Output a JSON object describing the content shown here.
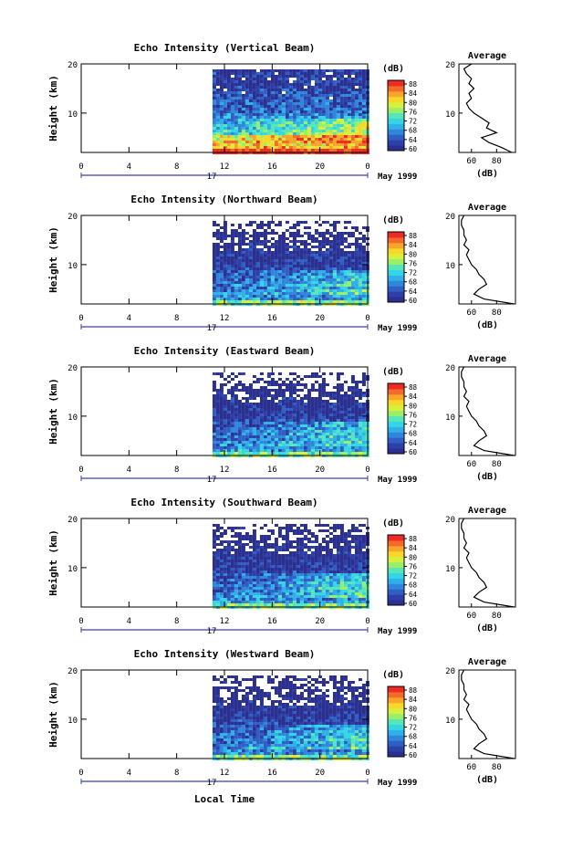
{
  "figure": {
    "xlabel": "Local Time",
    "date_label": "May 1999",
    "day_label": "17",
    "colorbar_unit": "(dB)",
    "profile_title": "Average",
    "profile_xlabel": "(dB)",
    "ylabel": "Height (km)"
  },
  "colormap": [
    "#2b2f8f",
    "#2e3fa8",
    "#2f5fc4",
    "#2f86db",
    "#2fb0e8",
    "#34d6e6",
    "#57e6b8",
    "#9aef6a",
    "#d6f03c",
    "#f7d82a",
    "#f8a52a",
    "#f46a2a",
    "#ee2a25"
  ],
  "chart_data": [
    {
      "type": "heatmap",
      "title": "Echo Intensity (Vertical Beam)",
      "x_ticks": [
        "0",
        "4",
        "8",
        "12",
        "16",
        "20",
        "0"
      ],
      "y_ticks": [
        "20",
        "10"
      ],
      "xlim": [
        0,
        24
      ],
      "ylim": [
        2,
        20
      ],
      "data_start_hour": 11,
      "colorbar_ticks": [
        "88",
        "84",
        "80",
        "76",
        "72",
        "68",
        "64",
        "60"
      ],
      "clim": [
        60,
        90
      ],
      "pattern": {
        "low": 84,
        "mid": 72,
        "upper": 66,
        "top": 62,
        "sparse": 0.02
      },
      "profile": {
        "xlim": [
          50,
          95
        ],
        "x_ticks": [
          "60",
          "80"
        ],
        "y_ticks": [
          "20",
          "10"
        ],
        "heights": [
          2,
          3,
          4,
          5,
          6,
          7,
          8,
          9,
          10,
          11,
          12,
          13,
          14,
          15,
          16,
          17,
          18,
          19,
          20
        ],
        "values": [
          92,
          84,
          74,
          68,
          80,
          72,
          74,
          68,
          62,
          58,
          56,
          60,
          58,
          62,
          58,
          60,
          56,
          54,
          60
        ]
      }
    },
    {
      "type": "heatmap",
      "title": "Echo Intensity (Northward Beam)",
      "x_ticks": [
        "0",
        "4",
        "8",
        "12",
        "16",
        "20",
        "0"
      ],
      "y_ticks": [
        "20",
        "10"
      ],
      "xlim": [
        0,
        24
      ],
      "ylim": [
        2,
        20
      ],
      "data_start_hour": 11,
      "colorbar_ticks": [
        "88",
        "84",
        "80",
        "76",
        "72",
        "68",
        "64",
        "60"
      ],
      "clim": [
        60,
        90
      ],
      "pattern": {
        "low": 70,
        "mid": 66,
        "upper": 62,
        "top": 58,
        "sparse": 0.25
      },
      "profile": {
        "xlim": [
          50,
          95
        ],
        "x_ticks": [
          "60",
          "80"
        ],
        "y_ticks": [
          "20",
          "10"
        ],
        "heights": [
          2,
          3,
          4,
          5,
          6,
          7,
          8,
          9,
          10,
          11,
          12,
          13,
          14,
          15,
          16,
          17,
          18,
          19,
          20
        ],
        "values": [
          94,
          70,
          62,
          66,
          72,
          70,
          66,
          64,
          60,
          58,
          56,
          58,
          54,
          56,
          54,
          54,
          52,
          52,
          54
        ]
      }
    },
    {
      "type": "heatmap",
      "title": "Echo Intensity (Eastward Beam)",
      "x_ticks": [
        "0",
        "4",
        "8",
        "12",
        "16",
        "20",
        "0"
      ],
      "y_ticks": [
        "20",
        "10"
      ],
      "xlim": [
        0,
        24
      ],
      "ylim": [
        2,
        20
      ],
      "data_start_hour": 11,
      "colorbar_ticks": [
        "88",
        "84",
        "80",
        "76",
        "72",
        "68",
        "64",
        "60"
      ],
      "clim": [
        60,
        90
      ],
      "pattern": {
        "low": 70,
        "mid": 66,
        "upper": 62,
        "top": 58,
        "sparse": 0.3
      },
      "profile": {
        "xlim": [
          50,
          95
        ],
        "x_ticks": [
          "60",
          "80"
        ],
        "y_ticks": [
          "20",
          "10"
        ],
        "heights": [
          2,
          3,
          4,
          5,
          6,
          7,
          8,
          9,
          10,
          11,
          12,
          13,
          14,
          15,
          16,
          17,
          18,
          19,
          20
        ],
        "values": [
          94,
          70,
          62,
          66,
          72,
          70,
          66,
          64,
          60,
          58,
          56,
          58,
          54,
          56,
          54,
          54,
          52,
          52,
          54
        ]
      }
    },
    {
      "type": "heatmap",
      "title": "Echo Intensity (Southward Beam)",
      "x_ticks": [
        "0",
        "4",
        "8",
        "12",
        "16",
        "20",
        "0"
      ],
      "y_ticks": [
        "20",
        "10"
      ],
      "xlim": [
        0,
        24
      ],
      "ylim": [
        2,
        20
      ],
      "data_start_hour": 11,
      "colorbar_ticks": [
        "88",
        "84",
        "80",
        "76",
        "72",
        "68",
        "64",
        "60"
      ],
      "clim": [
        60,
        90
      ],
      "pattern": {
        "low": 70,
        "mid": 66,
        "upper": 62,
        "top": 58,
        "sparse": 0.22
      },
      "profile": {
        "xlim": [
          50,
          95
        ],
        "x_ticks": [
          "60",
          "80"
        ],
        "y_ticks": [
          "20",
          "10"
        ],
        "heights": [
          2,
          3,
          4,
          5,
          6,
          7,
          8,
          9,
          10,
          11,
          12,
          13,
          14,
          15,
          16,
          17,
          18,
          19,
          20
        ],
        "values": [
          94,
          70,
          62,
          66,
          72,
          70,
          66,
          64,
          60,
          58,
          56,
          58,
          54,
          56,
          54,
          54,
          52,
          52,
          54
        ]
      }
    },
    {
      "type": "heatmap",
      "title": "Echo Intensity (Westward Beam)",
      "x_ticks": [
        "0",
        "4",
        "8",
        "12",
        "16",
        "20",
        "0"
      ],
      "y_ticks": [
        "20",
        "10"
      ],
      "xlim": [
        0,
        24
      ],
      "ylim": [
        2,
        20
      ],
      "data_start_hour": 11,
      "colorbar_ticks": [
        "88",
        "84",
        "80",
        "76",
        "72",
        "68",
        "64",
        "60"
      ],
      "clim": [
        60,
        90
      ],
      "pattern": {
        "low": 70,
        "mid": 66,
        "upper": 62,
        "top": 58,
        "sparse": 0.28
      },
      "profile": {
        "xlim": [
          50,
          95
        ],
        "x_ticks": [
          "60",
          "80"
        ],
        "y_ticks": [
          "20",
          "10"
        ],
        "heights": [
          2,
          3,
          4,
          5,
          6,
          7,
          8,
          9,
          10,
          11,
          12,
          13,
          14,
          15,
          16,
          17,
          18,
          19,
          20
        ],
        "values": [
          94,
          70,
          62,
          66,
          72,
          70,
          66,
          64,
          60,
          58,
          56,
          58,
          54,
          56,
          54,
          54,
          52,
          52,
          54
        ]
      }
    }
  ]
}
